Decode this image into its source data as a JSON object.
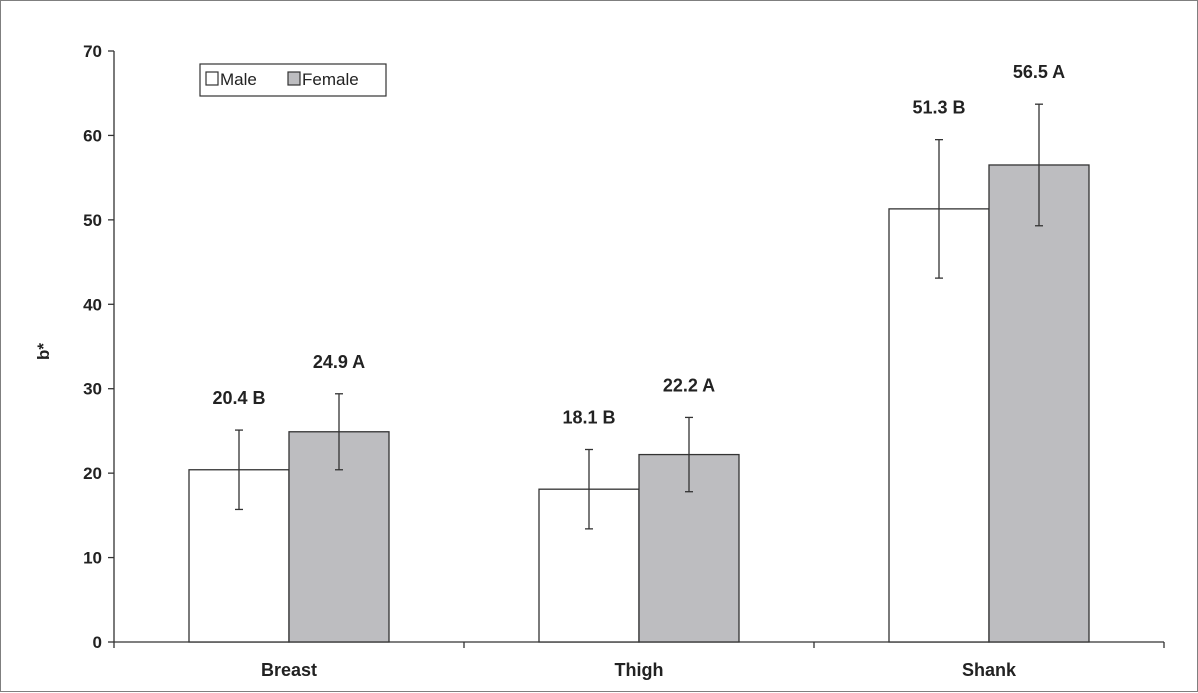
{
  "chart_data": {
    "type": "bar",
    "title": "",
    "xlabel": "",
    "ylabel": "b*",
    "ylim": [
      0,
      70
    ],
    "yticks": [
      0,
      10,
      20,
      30,
      40,
      50,
      60,
      70
    ],
    "grid": false,
    "legend_position": "top-left",
    "categories": [
      "Breast",
      "Thigh",
      "Shank"
    ],
    "series": [
      {
        "name": "Male",
        "color": "#ffffff",
        "values": [
          20.4,
          18.1,
          51.3
        ],
        "error": [
          4.7,
          4.7,
          8.2
        ],
        "labels": [
          "20.4 B",
          "18.1 B",
          "51.3 B"
        ]
      },
      {
        "name": "Female",
        "color": "#bdbdc0",
        "values": [
          24.9,
          22.2,
          56.5
        ],
        "error": [
          4.5,
          4.4,
          7.2
        ],
        "labels": [
          "24.9 A",
          "22.2 A",
          "56.5 A"
        ]
      }
    ]
  }
}
